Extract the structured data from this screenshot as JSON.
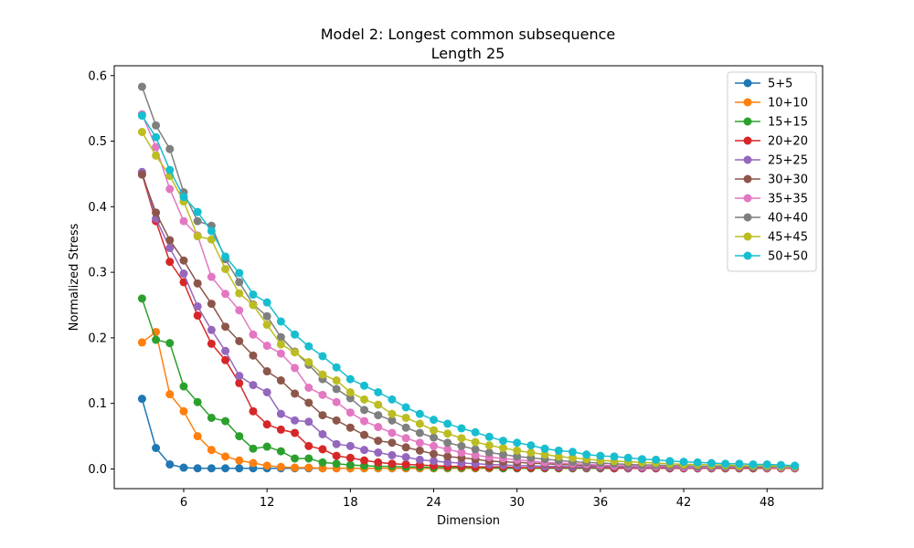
{
  "chart_data": {
    "type": "line",
    "title": "Model 2: Longest common subsequence",
    "subtitle": "Length 25",
    "xlabel": "Dimension",
    "ylabel": "Normalized Stress",
    "xlim": [
      1,
      52
    ],
    "ylim": [
      -0.03,
      0.615
    ],
    "xticks": [
      6,
      12,
      18,
      24,
      30,
      36,
      42,
      48
    ],
    "yticks": [
      0.0,
      0.1,
      0.2,
      0.3,
      0.4,
      0.5,
      0.6
    ],
    "ytick_labels": [
      "0.0",
      "0.1",
      "0.2",
      "0.3",
      "0.4",
      "0.5",
      "0.6"
    ],
    "grid": false,
    "legend_position": "top-right",
    "x": [
      3,
      4,
      5,
      6,
      7,
      8,
      9,
      10,
      11,
      12,
      13,
      14,
      15,
      16,
      17,
      18,
      19,
      20,
      21,
      22,
      23,
      24,
      25,
      26,
      27,
      28,
      29,
      30,
      31,
      32,
      33,
      34,
      35,
      36,
      37,
      38,
      39,
      40,
      41,
      42,
      43,
      44,
      45,
      46,
      47,
      48,
      49,
      50
    ],
    "series": [
      {
        "name": "5+5",
        "color": "#1f77b4",
        "values": [
          0.107,
          0.032,
          0.007,
          0.002,
          0.001,
          0.001,
          0.001,
          0.001,
          0.001,
          0.001,
          0.001,
          0.001,
          0.001,
          0.001,
          0.001,
          0.001,
          0.001,
          0.001,
          0.001,
          0.001,
          0.001,
          0.001,
          0.001,
          0.001,
          0.001,
          0.001,
          0.001,
          0.001,
          0.001,
          0.001,
          0.001,
          0.001,
          0.001,
          0.001,
          0.001,
          0.001,
          0.001,
          0.001,
          0.001,
          0.001,
          0.001,
          0.001,
          0.001,
          0.001,
          0.001,
          0.001,
          0.001,
          0.001
        ]
      },
      {
        "name": "10+10",
        "color": "#ff7f0e",
        "values": [
          0.193,
          0.209,
          0.114,
          0.088,
          0.05,
          0.029,
          0.019,
          0.013,
          0.009,
          0.005,
          0.003,
          0.002,
          0.002,
          0.001,
          0.001,
          0.001,
          0.001,
          0.001,
          0.001,
          0.001,
          0.001,
          0.001,
          0.001,
          0.001,
          0.001,
          0.001,
          0.001,
          0.001,
          0.001,
          0.001,
          0.001,
          0.001,
          0.001,
          0.001,
          0.001,
          0.001,
          0.001,
          0.001,
          0.001,
          0.001,
          0.001,
          0.001,
          0.001,
          0.001,
          0.001,
          0.001,
          0.001,
          0.001
        ]
      },
      {
        "name": "15+15",
        "color": "#2ca02c",
        "values": [
          0.26,
          0.197,
          0.192,
          0.126,
          0.102,
          0.078,
          0.073,
          0.05,
          0.031,
          0.034,
          0.027,
          0.016,
          0.016,
          0.01,
          0.008,
          0.006,
          0.005,
          0.004,
          0.004,
          0.003,
          0.003,
          0.002,
          0.002,
          0.002,
          0.002,
          0.002,
          0.001,
          0.001,
          0.001,
          0.001,
          0.001,
          0.001,
          0.001,
          0.001,
          0.001,
          0.001,
          0.001,
          0.001,
          0.001,
          0.001,
          0.001,
          0.001,
          0.001,
          0.001,
          0.001,
          0.001,
          0.001,
          0.001
        ]
      },
      {
        "name": "20+20",
        "color": "#d62728",
        "values": [
          0.45,
          0.378,
          0.316,
          0.285,
          0.234,
          0.191,
          0.166,
          0.131,
          0.088,
          0.068,
          0.06,
          0.055,
          0.035,
          0.03,
          0.02,
          0.017,
          0.013,
          0.01,
          0.008,
          0.007,
          0.006,
          0.005,
          0.004,
          0.004,
          0.003,
          0.003,
          0.003,
          0.002,
          0.002,
          0.002,
          0.002,
          0.002,
          0.002,
          0.002,
          0.001,
          0.001,
          0.001,
          0.001,
          0.001,
          0.001,
          0.001,
          0.001,
          0.001,
          0.001,
          0.001,
          0.001,
          0.001,
          0.001
        ]
      },
      {
        "name": "25+25",
        "color": "#9467bd",
        "values": [
          0.453,
          0.382,
          0.337,
          0.298,
          0.248,
          0.212,
          0.18,
          0.142,
          0.128,
          0.117,
          0.084,
          0.074,
          0.072,
          0.053,
          0.038,
          0.035,
          0.029,
          0.025,
          0.021,
          0.018,
          0.014,
          0.012,
          0.01,
          0.009,
          0.008,
          0.007,
          0.006,
          0.005,
          0.005,
          0.004,
          0.004,
          0.003,
          0.003,
          0.003,
          0.003,
          0.002,
          0.002,
          0.002,
          0.002,
          0.002,
          0.002,
          0.002,
          0.002,
          0.002,
          0.002,
          0.002,
          0.002,
          0.002
        ]
      },
      {
        "name": "30+30",
        "color": "#8c564b",
        "values": [
          0.449,
          0.391,
          0.349,
          0.318,
          0.283,
          0.252,
          0.217,
          0.195,
          0.173,
          0.149,
          0.135,
          0.115,
          0.101,
          0.082,
          0.074,
          0.063,
          0.052,
          0.043,
          0.04,
          0.033,
          0.028,
          0.023,
          0.019,
          0.017,
          0.015,
          0.012,
          0.011,
          0.01,
          0.009,
          0.008,
          0.007,
          0.006,
          0.005,
          0.005,
          0.004,
          0.004,
          0.004,
          0.003,
          0.003,
          0.003,
          0.003,
          0.003,
          0.002,
          0.002,
          0.002,
          0.002,
          0.002,
          0.002
        ]
      },
      {
        "name": "35+35",
        "color": "#e377c2",
        "values": [
          0.541,
          0.491,
          0.427,
          0.378,
          0.356,
          0.293,
          0.267,
          0.242,
          0.205,
          0.188,
          0.176,
          0.154,
          0.124,
          0.113,
          0.102,
          0.086,
          0.073,
          0.064,
          0.055,
          0.047,
          0.04,
          0.035,
          0.03,
          0.025,
          0.021,
          0.018,
          0.016,
          0.014,
          0.012,
          0.01,
          0.009,
          0.008,
          0.007,
          0.006,
          0.005,
          0.005,
          0.004,
          0.004,
          0.004,
          0.003,
          0.003,
          0.003,
          0.003,
          0.003,
          0.003,
          0.002,
          0.002,
          0.002
        ]
      },
      {
        "name": "40+40",
        "color": "#7f7f7f",
        "values": [
          0.583,
          0.524,
          0.488,
          0.422,
          0.378,
          0.371,
          0.32,
          0.285,
          0.251,
          0.233,
          0.201,
          0.179,
          0.159,
          0.137,
          0.122,
          0.108,
          0.09,
          0.082,
          0.074,
          0.063,
          0.055,
          0.048,
          0.04,
          0.035,
          0.03,
          0.025,
          0.022,
          0.019,
          0.017,
          0.015,
          0.013,
          0.011,
          0.01,
          0.009,
          0.008,
          0.007,
          0.006,
          0.006,
          0.005,
          0.005,
          0.004,
          0.004,
          0.004,
          0.004,
          0.003,
          0.003,
          0.003,
          0.003
        ]
      },
      {
        "name": "45+45",
        "color": "#bcbd22",
        "values": [
          0.514,
          0.478,
          0.447,
          0.408,
          0.355,
          0.35,
          0.305,
          0.268,
          0.25,
          0.22,
          0.19,
          0.178,
          0.163,
          0.144,
          0.135,
          0.117,
          0.106,
          0.098,
          0.084,
          0.078,
          0.069,
          0.059,
          0.054,
          0.047,
          0.041,
          0.036,
          0.032,
          0.028,
          0.025,
          0.022,
          0.019,
          0.017,
          0.015,
          0.013,
          0.012,
          0.011,
          0.01,
          0.009,
          0.008,
          0.007,
          0.007,
          0.006,
          0.006,
          0.005,
          0.005,
          0.005,
          0.004,
          0.004
        ]
      },
      {
        "name": "50+50",
        "color": "#17becf",
        "values": [
          0.539,
          0.506,
          0.456,
          0.415,
          0.392,
          0.363,
          0.324,
          0.299,
          0.266,
          0.254,
          0.225,
          0.205,
          0.187,
          0.172,
          0.155,
          0.137,
          0.127,
          0.117,
          0.106,
          0.094,
          0.084,
          0.075,
          0.069,
          0.062,
          0.056,
          0.049,
          0.043,
          0.04,
          0.036,
          0.031,
          0.028,
          0.026,
          0.022,
          0.02,
          0.019,
          0.017,
          0.015,
          0.014,
          0.012,
          0.011,
          0.01,
          0.009,
          0.008,
          0.008,
          0.007,
          0.007,
          0.006,
          0.005
        ]
      }
    ]
  }
}
